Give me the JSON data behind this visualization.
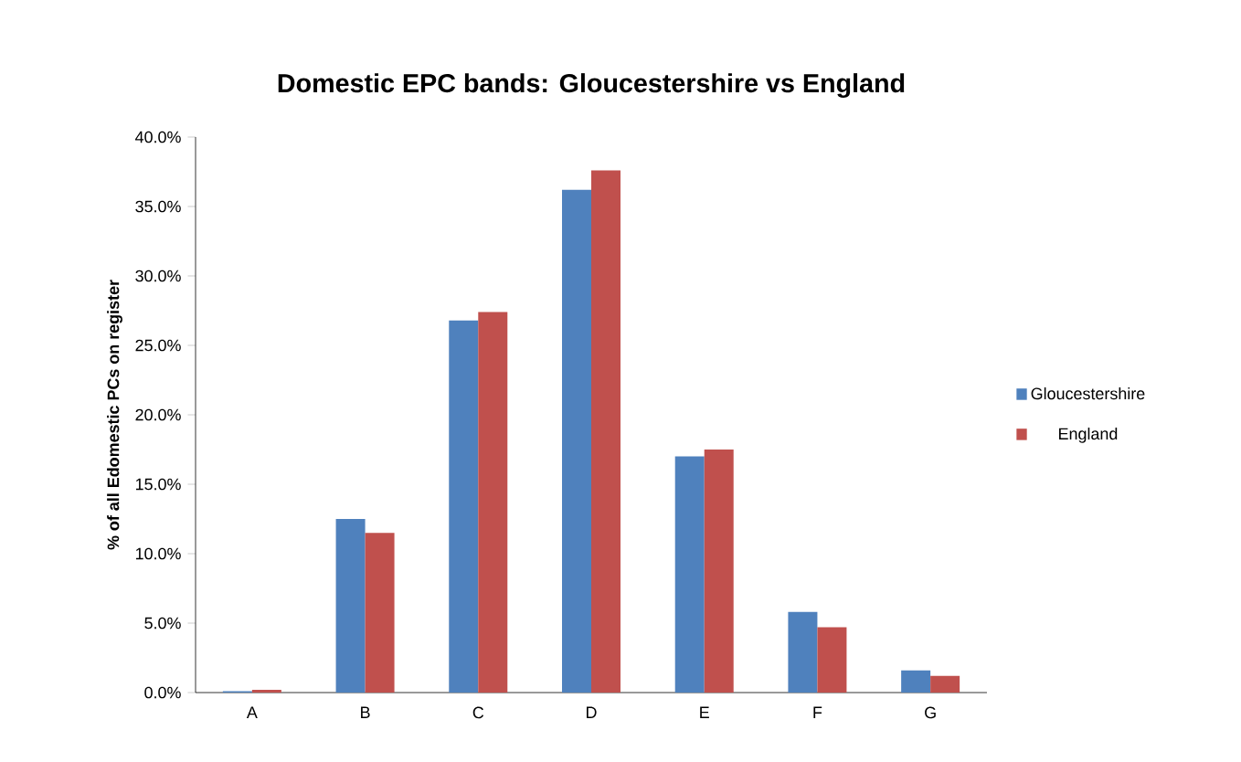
{
  "chart_data": {
    "type": "bar",
    "title": "Domestic EPC bands: Gloucestershire vs England",
    "ylabel": "% of all Edomestic PCs on register",
    "categories": [
      "A",
      "B",
      "C",
      "D",
      "E",
      "F",
      "G"
    ],
    "series": [
      {
        "name": "Gloucestershire",
        "color": "#4f81bd",
        "values": [
          0.1,
          12.5,
          26.8,
          36.2,
          17.0,
          5.8,
          1.6
        ]
      },
      {
        "name": "England",
        "color": "#c0504d",
        "values": [
          0.2,
          11.5,
          27.4,
          37.6,
          17.5,
          4.7,
          1.2
        ]
      }
    ],
    "ylim": [
      0,
      40
    ],
    "yticks": [
      {
        "value": 0,
        "label": "0.0%"
      },
      {
        "value": 5,
        "label": "5.0%"
      },
      {
        "value": 10,
        "label": "10.0%"
      },
      {
        "value": 15,
        "label": "15.0%"
      },
      {
        "value": 20,
        "label": "20.0%"
      },
      {
        "value": 25,
        "label": "25.0%"
      },
      {
        "value": 30,
        "label": "30.0%"
      },
      {
        "value": 35,
        "label": "35.0%"
      },
      {
        "value": 40,
        "label": "40.0%"
      }
    ],
    "legend": "right"
  }
}
